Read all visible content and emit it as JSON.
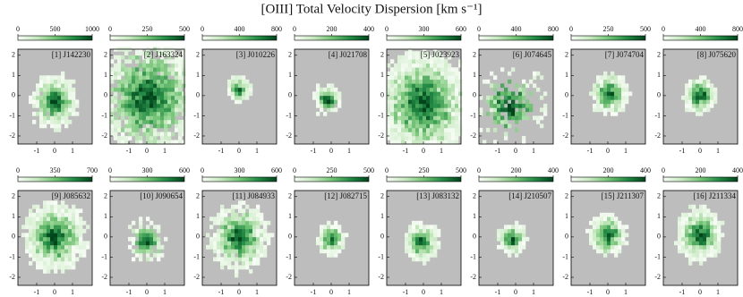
{
  "title": "[OIII] Total Velocity Dispersion [km s⁻¹]",
  "chart_data": [
    {
      "type": "heatmap",
      "label": "[1] J142230",
      "colorbar_lim": [
        0,
        1000
      ],
      "colorbar_ticks": [
        0,
        500,
        1000
      ],
      "xlim": [
        -2.05,
        2.1
      ],
      "ylim": [
        -2.4,
        2.3
      ],
      "xticks": [
        -1,
        0,
        1
      ],
      "yticks": [
        -2,
        -1,
        0,
        1,
        2
      ]
    },
    {
      "type": "heatmap",
      "label": "[2] J163324",
      "colorbar_lim": [
        0,
        500
      ],
      "colorbar_ticks": [
        0,
        250,
        500
      ],
      "xlim": [
        -2.05,
        2.1
      ],
      "ylim": [
        -2.4,
        2.3
      ],
      "xticks": [
        -1,
        0,
        1
      ],
      "yticks": [
        -2,
        -1,
        0,
        1,
        2
      ]
    },
    {
      "type": "heatmap",
      "label": "[3] J010226",
      "colorbar_lim": [
        0,
        800
      ],
      "colorbar_ticks": [
        0,
        400,
        800
      ],
      "xlim": [
        -2.05,
        2.1
      ],
      "ylim": [
        -2.4,
        2.3
      ],
      "xticks": [
        -1,
        0,
        1
      ],
      "yticks": [
        -2,
        -1,
        0,
        1,
        2
      ]
    },
    {
      "type": "heatmap",
      "label": "[4] J021708",
      "colorbar_lim": [
        0,
        400
      ],
      "colorbar_ticks": [
        0,
        200,
        400
      ],
      "xlim": [
        -2.05,
        2.1
      ],
      "ylim": [
        -2.4,
        2.3
      ],
      "xticks": [
        -1,
        0,
        1
      ],
      "yticks": [
        -2,
        -1,
        0,
        1,
        2
      ]
    },
    {
      "type": "heatmap",
      "label": "[5] J023923",
      "colorbar_lim": [
        0,
        600
      ],
      "colorbar_ticks": [
        0,
        300,
        600
      ],
      "xlim": [
        -2.05,
        2.1
      ],
      "ylim": [
        -2.4,
        2.3
      ],
      "xticks": [
        -1,
        0,
        1
      ],
      "yticks": [
        -2,
        -1,
        0,
        1,
        2
      ]
    },
    {
      "type": "heatmap",
      "label": "[6] J074645",
      "colorbar_lim": [
        0,
        800
      ],
      "colorbar_ticks": [
        0,
        400,
        800
      ],
      "xlim": [
        -2.05,
        2.1
      ],
      "ylim": [
        -2.4,
        2.3
      ],
      "xticks": [
        -1,
        0,
        1
      ],
      "yticks": [
        -2,
        -1,
        0,
        1,
        2
      ]
    },
    {
      "type": "heatmap",
      "label": "[7] J074704",
      "colorbar_lim": [
        0,
        500
      ],
      "colorbar_ticks": [
        0,
        250,
        500
      ],
      "xlim": [
        -2.05,
        2.1
      ],
      "ylim": [
        -2.4,
        2.3
      ],
      "xticks": [
        -1,
        0,
        1
      ],
      "yticks": [
        -2,
        -1,
        0,
        1,
        2
      ]
    },
    {
      "type": "heatmap",
      "label": "[8] J075620",
      "colorbar_lim": [
        0,
        800
      ],
      "colorbar_ticks": [
        0,
        400,
        800
      ],
      "xlim": [
        -2.05,
        2.1
      ],
      "ylim": [
        -2.4,
        2.3
      ],
      "xticks": [
        -1,
        0,
        1
      ],
      "yticks": [
        -2,
        -1,
        0,
        1,
        2
      ]
    },
    {
      "type": "heatmap",
      "label": "[9] J085632",
      "colorbar_lim": [
        0,
        700
      ],
      "colorbar_ticks": [
        0,
        350,
        700
      ],
      "xlim": [
        -2.05,
        2.1
      ],
      "ylim": [
        -2.4,
        2.3
      ],
      "xticks": [
        -1,
        0,
        1
      ],
      "yticks": [
        -2,
        -1,
        0,
        1,
        2
      ]
    },
    {
      "type": "heatmap",
      "label": "[10] J090654",
      "colorbar_lim": [
        0,
        600
      ],
      "colorbar_ticks": [
        0,
        300,
        600
      ],
      "xlim": [
        -2.05,
        2.1
      ],
      "ylim": [
        -2.4,
        2.3
      ],
      "xticks": [
        -1,
        0,
        1
      ],
      "yticks": [
        -2,
        -1,
        0,
        1,
        2
      ]
    },
    {
      "type": "heatmap",
      "label": "[11] J084933",
      "colorbar_lim": [
        0,
        600
      ],
      "colorbar_ticks": [
        0,
        300,
        600
      ],
      "xlim": [
        -2.05,
        2.1
      ],
      "ylim": [
        -2.4,
        2.3
      ],
      "xticks": [
        -1,
        0,
        1
      ],
      "yticks": [
        -2,
        -1,
        0,
        1,
        2
      ]
    },
    {
      "type": "heatmap",
      "label": "[12] J082715",
      "colorbar_lim": [
        0,
        500
      ],
      "colorbar_ticks": [
        0,
        250,
        500
      ],
      "xlim": [
        -2.05,
        2.1
      ],
      "ylim": [
        -2.4,
        2.3
      ],
      "xticks": [
        -1,
        0,
        1
      ],
      "yticks": [
        -2,
        -1,
        0,
        1,
        2
      ]
    },
    {
      "type": "heatmap",
      "label": "[13] J083132",
      "colorbar_lim": [
        0,
        500
      ],
      "colorbar_ticks": [
        0,
        250,
        500
      ],
      "xlim": [
        -2.05,
        2.1
      ],
      "ylim": [
        -2.4,
        2.3
      ],
      "xticks": [
        -1,
        0,
        1
      ],
      "yticks": [
        -2,
        -1,
        0,
        1,
        2
      ]
    },
    {
      "type": "heatmap",
      "label": "[14] J210507",
      "colorbar_lim": [
        0,
        400
      ],
      "colorbar_ticks": [
        0,
        200,
        400
      ],
      "xlim": [
        -2.05,
        2.1
      ],
      "ylim": [
        -2.4,
        2.3
      ],
      "xticks": [
        -1,
        0,
        1
      ],
      "yticks": [
        -2,
        -1,
        0,
        1,
        2
      ]
    },
    {
      "type": "heatmap",
      "label": "[15] J211307",
      "colorbar_lim": [
        0,
        400
      ],
      "colorbar_ticks": [
        0,
        200,
        400
      ],
      "xlim": [
        -2.05,
        2.1
      ],
      "ylim": [
        -2.4,
        2.3
      ],
      "xticks": [
        -1,
        0,
        1
      ],
      "yticks": [
        -2,
        -1,
        0,
        1,
        2
      ]
    },
    {
      "type": "heatmap",
      "label": "[16] J211334",
      "colorbar_lim": [
        0,
        400
      ],
      "colorbar_ticks": [
        0,
        200,
        400
      ],
      "xlim": [
        -2.05,
        2.1
      ],
      "ylim": [
        -2.4,
        2.3
      ],
      "xticks": [
        -1,
        0,
        1
      ],
      "yticks": [
        -2,
        -1,
        0,
        1,
        2
      ]
    }
  ]
}
